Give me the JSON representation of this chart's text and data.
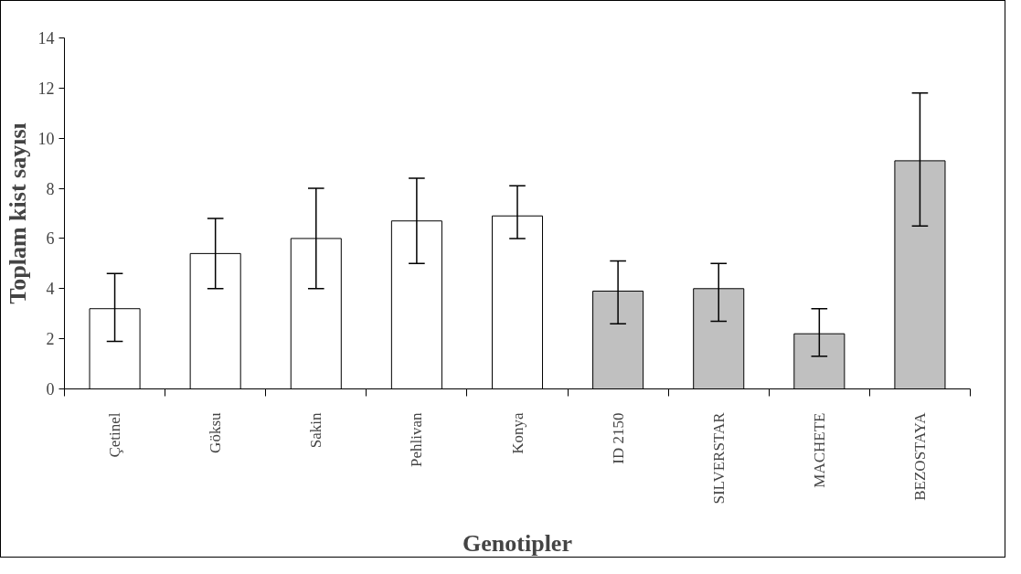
{
  "chart_data": {
    "type": "bar",
    "xlabel": "Genotipler",
    "ylabel": "Toplam kist sayısı",
    "categories": [
      "Çetinel",
      "Göksu",
      "Sakin",
      "Pehlivan",
      "Konya",
      "ID 2150",
      "SILVERSTAR",
      "MACHETE",
      "BEZOSTAYA"
    ],
    "values": [
      3.2,
      5.4,
      6.0,
      6.7,
      6.9,
      3.9,
      4.0,
      2.2,
      9.1
    ],
    "colors": [
      "#ffffff",
      "#ffffff",
      "#ffffff",
      "#ffffff",
      "#ffffff",
      "#c0c0c0",
      "#c0c0c0",
      "#c0c0c0",
      "#c0c0c0"
    ],
    "errors": [
      [
        1.9,
        4.6
      ],
      [
        4.0,
        6.8
      ],
      [
        4.0,
        8.0
      ],
      [
        5.0,
        8.4
      ],
      [
        6.0,
        8.1
      ],
      [
        2.6,
        5.1
      ],
      [
        2.7,
        5.0
      ],
      [
        1.3,
        3.2
      ],
      [
        6.5,
        11.8
      ]
    ],
    "ylim": [
      0,
      14
    ],
    "yticks": [
      0,
      2,
      4,
      6,
      8,
      10,
      12,
      14
    ],
    "grid": false
  }
}
